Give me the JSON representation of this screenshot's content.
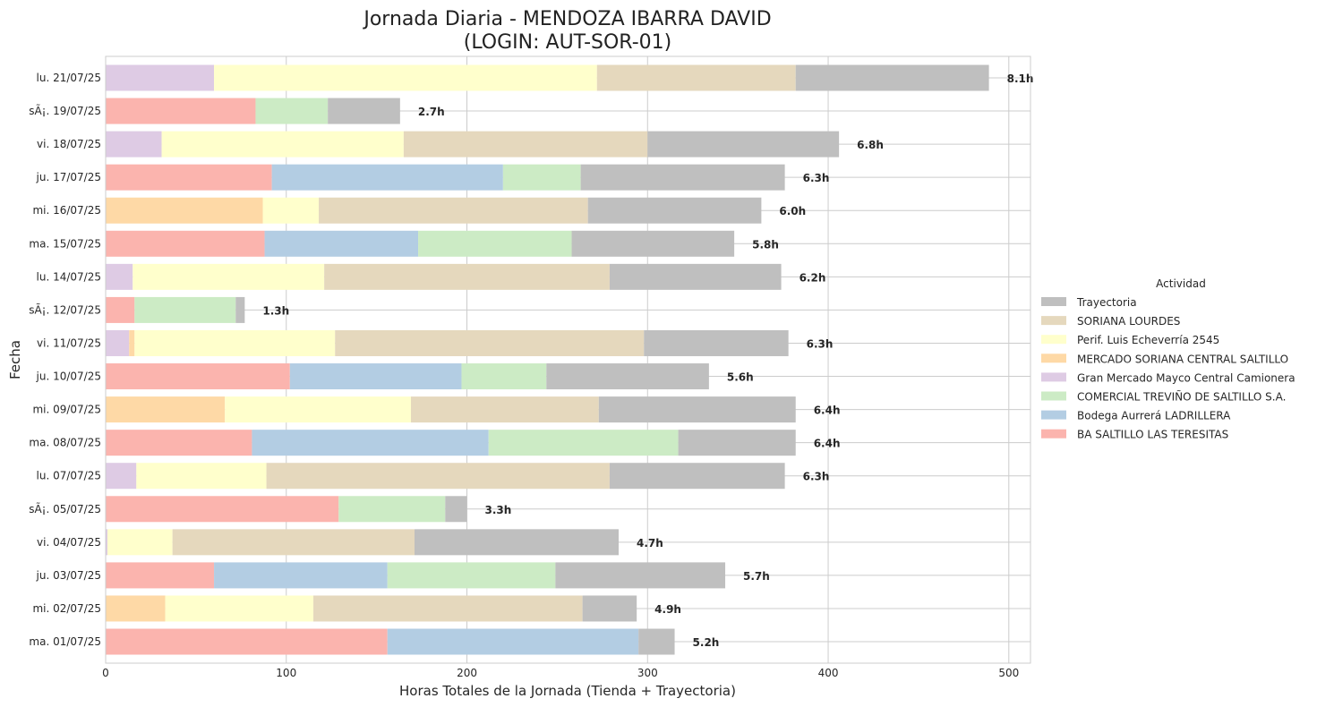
{
  "chart_data": {
    "type": "bar",
    "orientation": "horizontal",
    "stacked": true,
    "title": "Jornada Diaria - MENDOZA IBARRA DAVID",
    "subtitle": "(LOGIN: AUT-SOR-01)",
    "xlabel": "Horas Totales de la Jornada (Tienda + Trayectoria)",
    "ylabel": "Fecha",
    "xlim": [
      0,
      512
    ],
    "xticks": [
      0,
      100,
      200,
      300,
      400,
      500
    ],
    "grid": true,
    "legend": {
      "title": "Actividad",
      "placement": "right"
    },
    "categories": [
      "lu. 21/07/25",
      "sÃ¡. 19/07/25",
      "vi. 18/07/25",
      "ju. 17/07/25",
      "mi. 16/07/25",
      "ma. 15/07/25",
      "lu. 14/07/25",
      "sÃ¡. 12/07/25",
      "vi. 11/07/25",
      "ju. 10/07/25",
      "mi. 09/07/25",
      "ma. 08/07/25",
      "lu. 07/07/25",
      "sÃ¡. 05/07/25",
      "vi. 04/07/25",
      "ju. 03/07/25",
      "mi. 02/07/25",
      "ma. 01/07/25"
    ],
    "totals": [
      "8.1h",
      "2.7h",
      "6.8h",
      "6.3h",
      "6.0h",
      "5.8h",
      "6.2h",
      "1.3h",
      "6.3h",
      "5.6h",
      "6.4h",
      "6.4h",
      "6.3h",
      "3.3h",
      "4.7h",
      "5.7h",
      "4.9h",
      "5.2h"
    ],
    "series": [
      {
        "name": "BA SALTILLO LAS TERESITAS",
        "color": "#fbb4ae",
        "values": [
          0,
          83,
          0,
          92,
          0,
          88,
          0,
          16,
          0,
          102,
          0,
          81,
          0,
          129,
          0,
          60,
          0,
          156
        ]
      },
      {
        "name": "Bodega Aurrerá LADRILLERA",
        "color": "#b3cde3",
        "values": [
          0,
          0,
          0,
          128,
          0,
          85,
          0,
          0,
          0,
          95,
          0,
          131,
          0,
          0,
          0,
          96,
          0,
          139
        ]
      },
      {
        "name": "COMERCIAL TREVIÑO DE SALTILLO S.A.",
        "color": "#ccebc5",
        "values": [
          0,
          40,
          0,
          43,
          0,
          85,
          0,
          56,
          0,
          47,
          0,
          105,
          0,
          59,
          0,
          93,
          0,
          0
        ]
      },
      {
        "name": "Gran Mercado Mayco Central Camionera",
        "color": "#decbe4",
        "values": [
          60,
          0,
          31,
          0,
          0,
          0,
          15,
          0,
          13,
          0,
          0,
          0,
          17,
          0,
          1,
          0,
          0,
          0
        ]
      },
      {
        "name": "MERCADO SORIANA CENTRAL SALTILLO",
        "color": "#fed9a6",
        "values": [
          0,
          0,
          0,
          0,
          87,
          0,
          0,
          0,
          3,
          0,
          66,
          0,
          0,
          0,
          0,
          0,
          33,
          0
        ]
      },
      {
        "name": "Perif. Luis Echeverría 2545",
        "color": "#ffffcc",
        "values": [
          212,
          0,
          134,
          0,
          31,
          0,
          106,
          0,
          111,
          0,
          103,
          0,
          72,
          0,
          36,
          0,
          82,
          0
        ]
      },
      {
        "name": "SORIANA LOURDES",
        "color": "#e5d8bd",
        "values": [
          110,
          0,
          135,
          0,
          149,
          0,
          158,
          0,
          171,
          0,
          104,
          0,
          190,
          0,
          134,
          0,
          149,
          0
        ]
      },
      {
        "name": "Trayectoria",
        "color": "#bfbfbf",
        "values": [
          107,
          40,
          106,
          113,
          96,
          90,
          95,
          5,
          80,
          90,
          109,
          65,
          97,
          12,
          113,
          94,
          30,
          20
        ]
      }
    ]
  }
}
